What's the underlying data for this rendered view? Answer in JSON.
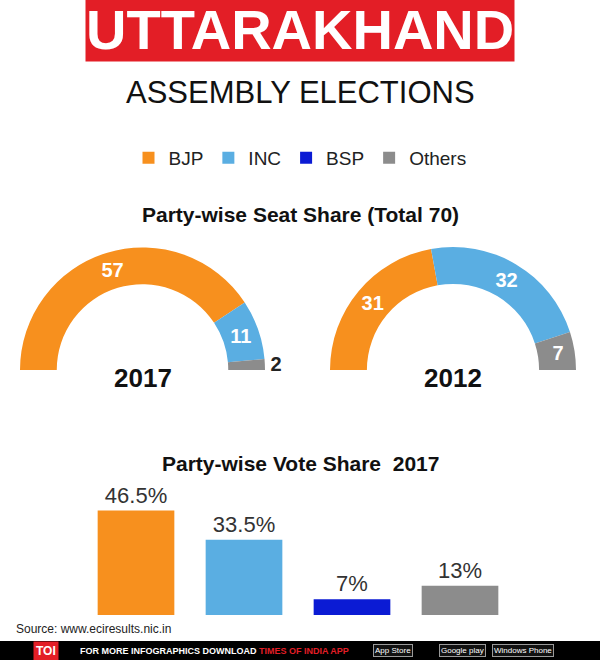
{
  "title": "UTTARAKHAND",
  "subtitle": "ASSEMBLY ELECTIONS",
  "source": "Source: www.eciresults.nic.in",
  "footer": {
    "logo": "TOI",
    "text": "FOR MORE INFOGRAPHICS DOWNLOAD",
    "highlight": "TIMES OF INDIA APP",
    "badges": [
      "App Store",
      "Google play",
      "Windows Phone"
    ]
  },
  "chart_data": [
    {
      "type": "pie",
      "title": "Party-wise Seat Share (Total 70)",
      "subtitle": "2017",
      "categories": [
        "BJP",
        "INC",
        "Others"
      ],
      "values": [
        57,
        11,
        2
      ],
      "colors": [
        "#f7901e",
        "#5aaee2",
        "#8c8c8c"
      ],
      "data_labels": true
    },
    {
      "type": "pie",
      "subtitle": "2012",
      "categories": [
        "BJP",
        "INC",
        "Others"
      ],
      "values": [
        31,
        32,
        7
      ],
      "colors": [
        "#f7901e",
        "#5aaee2",
        "#8c8c8c"
      ],
      "data_labels": true
    },
    {
      "type": "bar",
      "title": "Party-wise Vote Share  2017",
      "categories": [
        "BJP",
        "INC",
        "BSP",
        "Others"
      ],
      "values": [
        46.5,
        33.5,
        7,
        13
      ],
      "value_labels": [
        "46.5%",
        "33.5%",
        "7%",
        "13%"
      ],
      "colors": [
        "#f7901e",
        "#5aaee2",
        "#0b1bd4",
        "#8c8c8c"
      ],
      "data_labels": true,
      "tick_labels": false,
      "legend": "top"
    }
  ]
}
